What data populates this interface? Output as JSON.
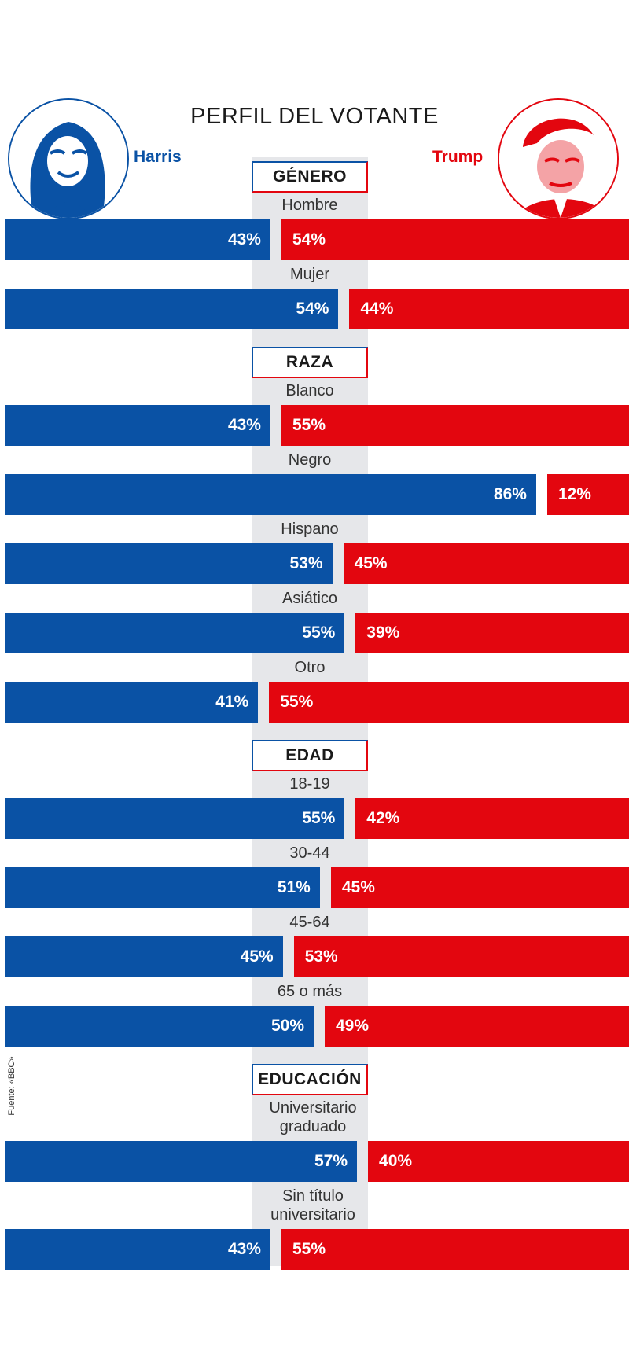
{
  "title": "PERFIL DEL VOTANTE",
  "candidates": {
    "left": {
      "name": "Harris",
      "color": "#0a52a5"
    },
    "right": {
      "name": "Trump",
      "color": "#e3060f"
    }
  },
  "source": "Fuente: «BBC»",
  "chart_data": {
    "type": "bar",
    "series": [
      {
        "name": "Harris",
        "color": "#0a52a5"
      },
      {
        "name": "Trump",
        "color": "#e3060f"
      }
    ],
    "groups": [
      {
        "label": "GÉNERO",
        "rows": [
          {
            "label": "Hombre",
            "harris": 43,
            "trump": 54
          },
          {
            "label": "Mujer",
            "harris": 54,
            "trump": 44
          }
        ]
      },
      {
        "label": "RAZA",
        "rows": [
          {
            "label": "Blanco",
            "harris": 43,
            "trump": 55
          },
          {
            "label": "Negro",
            "harris": 86,
            "trump": 12
          },
          {
            "label": "Hispano",
            "harris": 53,
            "trump": 45
          },
          {
            "label": "Asiático",
            "harris": 55,
            "trump": 39
          },
          {
            "label": "Otro",
            "harris": 41,
            "trump": 55
          }
        ]
      },
      {
        "label": "EDAD",
        "rows": [
          {
            "label": "18-19",
            "harris": 55,
            "trump": 42
          },
          {
            "label": "30-44",
            "harris": 51,
            "trump": 45
          },
          {
            "label": "45-64",
            "harris": 45,
            "trump": 53
          },
          {
            "label": "65 o más",
            "harris": 50,
            "trump": 49
          }
        ]
      },
      {
        "label": "EDUCACIÓN",
        "rows": [
          {
            "label": "Universitario graduado",
            "harris": 57,
            "trump": 40
          },
          {
            "label": "Sin título universitario",
            "harris": 43,
            "trump": 55
          }
        ]
      }
    ],
    "value_suffix": "%"
  }
}
